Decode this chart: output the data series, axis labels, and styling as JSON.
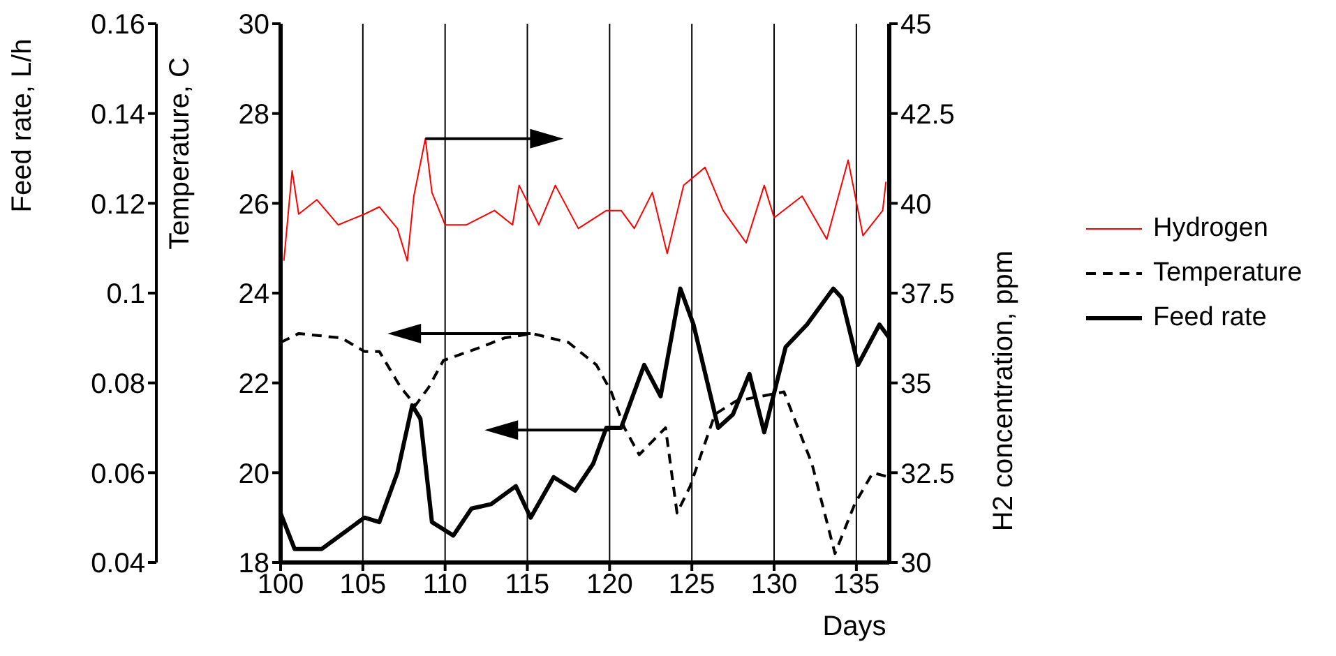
{
  "chart_data": {
    "type": "line",
    "xlabel": "Days",
    "ylabel": "Temperature, C",
    "y2label": "H2 concentration, ppm",
    "y3label": "Feed rate, L/h",
    "xlim": [
      100,
      137
    ],
    "xticks": [
      100,
      105,
      110,
      115,
      120,
      125,
      130,
      135
    ],
    "ylim": [
      18,
      30
    ],
    "yticks": [
      18,
      20,
      22,
      24,
      26,
      28,
      30
    ],
    "y2lim": [
      30,
      45
    ],
    "y2ticks": [
      30,
      32.5,
      35,
      37.5,
      40,
      42.5,
      45
    ],
    "y3lim": [
      0.04,
      0.16
    ],
    "y3ticks": [
      0.04,
      0.06,
      0.08,
      0.1,
      0.12,
      0.14,
      0.16
    ],
    "grid": "x",
    "legend": "right",
    "marker": "none",
    "series": [
      {
        "name": "Hydrogen",
        "color": "#ff0000",
        "axis": "y2",
        "line_style": "solid",
        "x": [
          100.2,
          100.7,
          101.1,
          102.2,
          103.5,
          105.1,
          106,
          107.1,
          107.7,
          108.1,
          108.8,
          109.2,
          110,
          111.3,
          113,
          114.1,
          114.5,
          115.7,
          116.7,
          118.1,
          119.8,
          120.7,
          121.5,
          122.6,
          123.5,
          124.5,
          125.8,
          126.9,
          128.3,
          129.4,
          130,
          131.7,
          133.2,
          134.5,
          135.4,
          136.6,
          136.8
        ],
        "values": [
          38.4,
          40.9,
          39.7,
          40.1,
          39.4,
          39.7,
          39.9,
          39.3,
          38.4,
          40.2,
          41.8,
          40.3,
          39.4,
          39.4,
          39.8,
          39.4,
          40.5,
          39.4,
          40.5,
          39.3,
          39.8,
          39.8,
          39.3,
          40.3,
          38.6,
          40.5,
          41,
          39.8,
          38.9,
          40.5,
          39.6,
          40.2,
          39,
          41.2,
          39.1,
          39.8,
          40.6
        ]
      },
      {
        "name": "Temperature",
        "color": "#000000",
        "axis": "y",
        "line_style": "dashed",
        "x": [
          100,
          101.1,
          103.7,
          105.1,
          106,
          107.3,
          108.2,
          109,
          109.9,
          112.2,
          113.6,
          115.3,
          117.5,
          119.2,
          120.1,
          120.9,
          121.8,
          123.4,
          124.1,
          124.9,
          126.4,
          127.7,
          129.2,
          130.6,
          132.3,
          133.7,
          134.9,
          136,
          137
        ],
        "values": [
          22.9,
          23.1,
          23,
          22.7,
          22.7,
          21.9,
          21.5,
          21.9,
          22.5,
          22.8,
          23,
          23.1,
          22.9,
          22.4,
          21.8,
          21,
          20.4,
          21,
          19.1,
          19.7,
          21.3,
          21.6,
          21.7,
          21.8,
          20.2,
          18.2,
          19.3,
          20,
          19.9
        ]
      },
      {
        "name": "Feed rate",
        "color": "#000000",
        "axis": "y3",
        "line_style": "solid",
        "x": [
          100,
          100.85,
          102.5,
          105.1,
          106,
          107.1,
          108,
          108.5,
          109.2,
          110.5,
          111.6,
          112.8,
          114.3,
          115.2,
          116.6,
          117.9,
          119,
          119.8,
          120.7,
          122.1,
          123.1,
          124.3,
          125.1,
          126.6,
          127.5,
          128.5,
          129.4,
          130.7,
          132,
          133.6,
          134.1,
          135.1,
          136.4,
          137
        ],
        "values": [
          0.051,
          0.043,
          0.043,
          0.05,
          0.049,
          0.06,
          0.075,
          0.072,
          0.049,
          0.046,
          0.052,
          0.053,
          0.057,
          0.05,
          0.059,
          0.056,
          0.062,
          0.07,
          0.07,
          0.084,
          0.077,
          0.101,
          0.093,
          0.07,
          0.073,
          0.082,
          0.069,
          0.088,
          0.093,
          0.101,
          0.099,
          0.084,
          0.093,
          0.09
        ]
      }
    ]
  }
}
